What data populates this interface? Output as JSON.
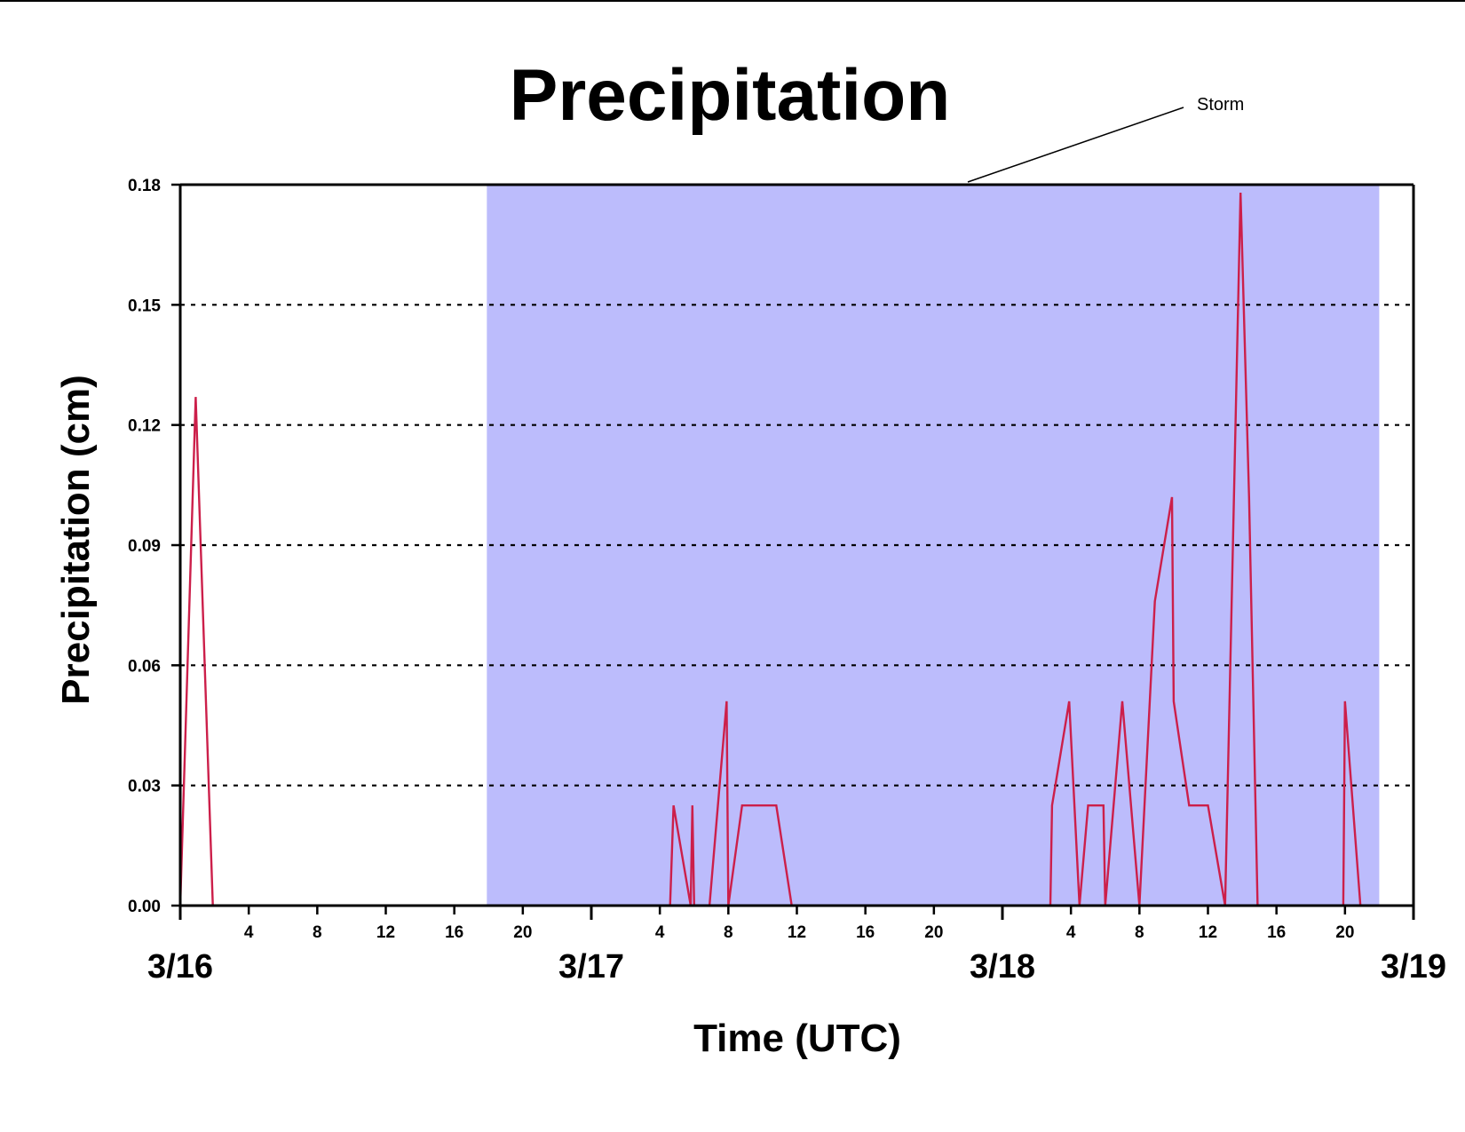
{
  "chart_data": {
    "type": "line",
    "title": "Precipitation",
    "xlabel": "Time (UTC)",
    "ylabel": "Precipitation (cm)",
    "x_unit": "hour",
    "xlim": [
      0,
      72
    ],
    "ylim": [
      0,
      0.18
    ],
    "yticks": [
      "0.00",
      "0.03",
      "0.06",
      "0.09",
      "0.12",
      "0.15",
      "0.18"
    ],
    "ytick_values": [
      0,
      0.03,
      0.06,
      0.09,
      0.12,
      0.15,
      0.18
    ],
    "grid": "horizontal dotted",
    "xticks_minor": [
      {
        "x": 4,
        "label": "4"
      },
      {
        "x": 8,
        "label": "8"
      },
      {
        "x": 12,
        "label": "12"
      },
      {
        "x": 16,
        "label": "16"
      },
      {
        "x": 20,
        "label": "20"
      },
      {
        "x": 28,
        "label": "4"
      },
      {
        "x": 32,
        "label": "8"
      },
      {
        "x": 36,
        "label": "12"
      },
      {
        "x": 40,
        "label": "16"
      },
      {
        "x": 44,
        "label": "20"
      },
      {
        "x": 52,
        "label": "4"
      },
      {
        "x": 56,
        "label": "8"
      },
      {
        "x": 60,
        "label": "12"
      },
      {
        "x": 64,
        "label": "16"
      },
      {
        "x": 68,
        "label": "20"
      }
    ],
    "xticks_major": [
      {
        "x": 0,
        "label": "3/16"
      },
      {
        "x": 24,
        "label": "3/17"
      },
      {
        "x": 48,
        "label": "3/18"
      },
      {
        "x": 72,
        "label": "3/19"
      }
    ],
    "shaded_region": {
      "label": "Storm",
      "x_start": 17.9,
      "x_end": 70,
      "color": "#bcbcfc"
    },
    "series": [
      {
        "color": "#cc1f4a",
        "x": [
          0,
          0.9,
          1.9,
          28.6,
          28.8,
          29.8,
          29.9,
          30.0,
          30.9,
          31.9,
          32.0,
          32.8,
          34.8,
          35.7,
          50.8,
          50.9,
          51.9,
          52.5,
          53.0,
          53.9,
          54.0,
          55.0,
          56.0,
          56.9,
          57.9,
          58.0,
          58.9,
          59.2,
          60.0,
          61.0,
          61.9,
          62.4,
          62.9,
          64.0,
          67.9,
          68.0,
          68.9,
          72
        ],
        "y": [
          0,
          0.127,
          0,
          0,
          0.025,
          0,
          0.025,
          0,
          0,
          0.051,
          0,
          0.025,
          0.025,
          0,
          0,
          0.025,
          0.051,
          0,
          0.025,
          0.025,
          0,
          0.051,
          0,
          0.076,
          0.102,
          0.051,
          0.025,
          0.025,
          0.025,
          0,
          0.178,
          0.102,
          0,
          0,
          0,
          0.051,
          0,
          0
        ]
      }
    ]
  }
}
